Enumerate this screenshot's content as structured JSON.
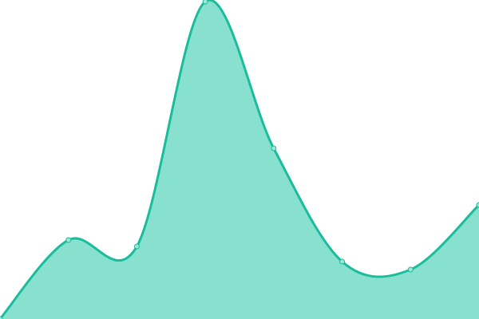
{
  "chart_data": {
    "type": "area",
    "x": [
      0,
      1,
      2,
      3,
      4,
      5,
      6,
      7
    ],
    "values": [
      0,
      99,
      91,
      398,
      214,
      72,
      62,
      143
    ],
    "ylim": [
      0,
      400
    ],
    "grid": false,
    "legend": "none",
    "smooth": true,
    "colors": {
      "line": "#1abc9c",
      "fill": "#88e0cf",
      "point_fill": "#9fe6d8"
    }
  }
}
